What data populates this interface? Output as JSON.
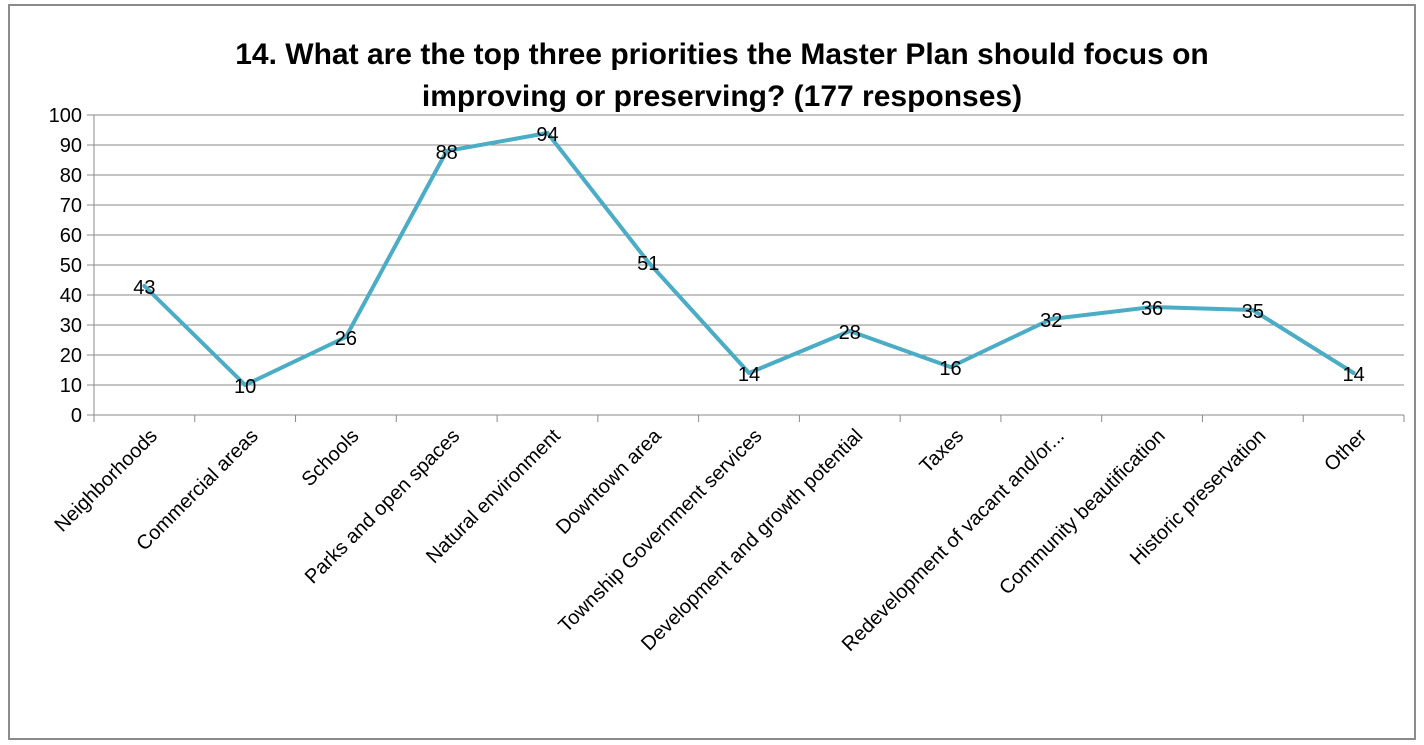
{
  "chart_data": {
    "type": "line",
    "title_lines": [
      "14. What are the top three priorities the Master Plan should focus on",
      "improving or preserving? (177 responses)"
    ],
    "xlabel": "",
    "ylabel": "",
    "ylim": [
      0,
      100
    ],
    "yticks": [
      0,
      10,
      20,
      30,
      40,
      50,
      60,
      70,
      80,
      90,
      100
    ],
    "grid": "horizontal",
    "line_color": "#4bacc6",
    "categories": [
      "Neighborhoods",
      "Commercial areas",
      "Schools",
      "Parks and open spaces",
      "Natural environment",
      "Downtown area",
      "Township Government services",
      "Development and growth potential",
      "Taxes",
      "Redevelopment of vacant and/or...",
      "Community beautification",
      "Historic preservation",
      "Other"
    ],
    "values": [
      43,
      10,
      26,
      88,
      94,
      51,
      14,
      28,
      16,
      32,
      36,
      35,
      14
    ]
  }
}
